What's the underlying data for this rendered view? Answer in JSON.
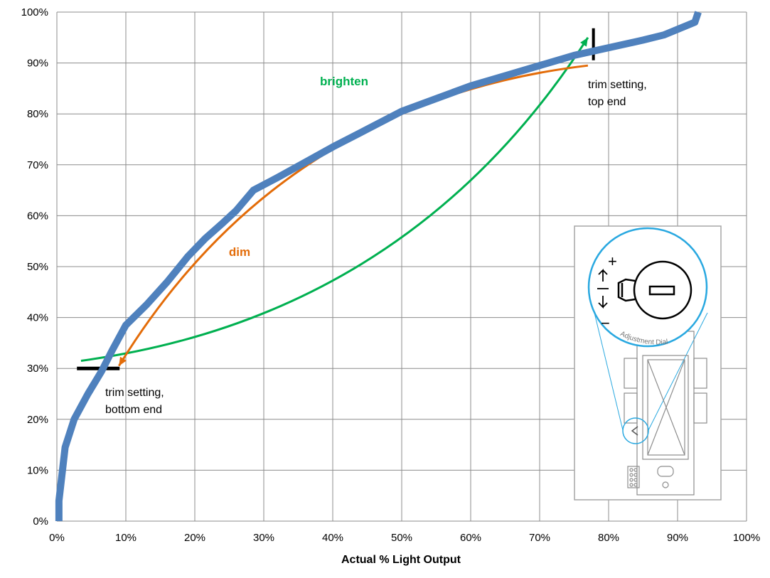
{
  "chart_data": {
    "type": "line",
    "title": "",
    "xlabel": "Actual % Light Output",
    "ylabel": "",
    "xlim": [
      0,
      100
    ],
    "ylim": [
      0,
      100
    ],
    "grid": true,
    "x_ticks": [
      "0%",
      "10%",
      "20%",
      "30%",
      "40%",
      "50%",
      "60%",
      "70%",
      "80%",
      "90%",
      "100%"
    ],
    "y_ticks": [
      "0%",
      "10%",
      "20%",
      "30%",
      "40%",
      "50%",
      "60%",
      "70%",
      "80%",
      "90%",
      "100%"
    ],
    "series": [
      {
        "color": "#4f81bd",
        "points": [
          [
            0.3,
            0
          ],
          [
            0.3,
            4
          ],
          [
            1.2,
            14.5
          ],
          [
            2.5,
            20
          ],
          [
            4.5,
            25
          ],
          [
            6.5,
            29.5
          ],
          [
            8,
            33.5
          ],
          [
            10,
            38.5
          ],
          [
            13,
            42.5
          ],
          [
            16,
            47
          ],
          [
            19,
            52
          ],
          [
            21.5,
            55.5
          ],
          [
            24,
            58.5
          ],
          [
            26,
            61
          ],
          [
            28.5,
            65
          ],
          [
            32,
            67.5
          ],
          [
            36,
            70.5
          ],
          [
            40,
            73.5
          ],
          [
            45,
            77
          ],
          [
            50,
            80.5
          ],
          [
            55,
            83
          ],
          [
            60,
            85.5
          ],
          [
            65,
            87.5
          ],
          [
            70,
            89.5
          ],
          [
            75,
            91.5
          ],
          [
            80,
            93
          ],
          [
            85,
            94.5
          ],
          [
            88,
            95.5
          ],
          [
            92.5,
            98
          ],
          [
            93,
            100
          ]
        ]
      }
    ],
    "annotations": {
      "brighten": {
        "label": "brighten",
        "color": "#00b050",
        "from": [
          3.5,
          31.5
        ],
        "to": [
          77,
          95
        ]
      },
      "dim": {
        "label": "dim",
        "color": "#e36c09",
        "from": [
          77,
          89.5
        ],
        "to": [
          9,
          30.5
        ]
      },
      "trim_top": {
        "label_line1": "trim setting,",
        "label_line2": "top end",
        "at": [
          77.8,
          95
        ]
      },
      "trim_bottom": {
        "label_line1": "trim setting,",
        "label_line2": "bottom end",
        "at": [
          6,
          30
        ]
      }
    }
  },
  "inset": {
    "dial_label": "Adjustment Dial",
    "plus": "+",
    "minus": "−"
  }
}
